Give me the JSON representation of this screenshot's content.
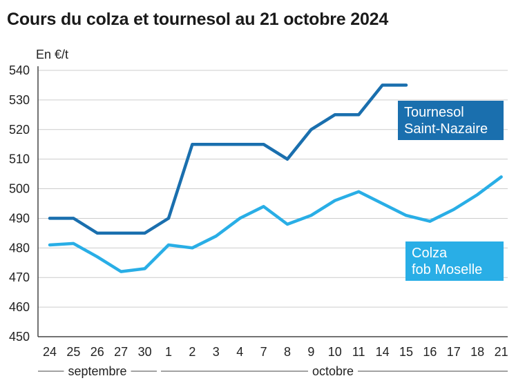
{
  "title": "Cours du colza et tournesol au 21 octobre 2024",
  "unit_label": "En €/t",
  "colors": {
    "tournesol": "#1a6fae",
    "colza": "#29aee6",
    "grid": "#cccccc",
    "axis": "#444444"
  },
  "months": [
    {
      "label": "septembre",
      "from": 0,
      "to": 4
    },
    {
      "label": "octobre",
      "from": 5,
      "to": 19
    }
  ],
  "chart_data": {
    "type": "line",
    "title": "Cours du colza et tournesol au 21 octobre 2024",
    "ylabel": "En €/t",
    "xlabel": "",
    "ylim": [
      450,
      540
    ],
    "yticks": [
      450,
      460,
      470,
      480,
      490,
      500,
      510,
      520,
      530,
      540
    ],
    "grid": "horizontal",
    "categories": [
      "24",
      "25",
      "26",
      "27",
      "30",
      "1",
      "2",
      "3",
      "4",
      "7",
      "8",
      "9",
      "10",
      "11",
      "14",
      "15",
      "16",
      "17",
      "18",
      "21"
    ],
    "series": [
      {
        "name": "Tournesol Saint-Nazaire",
        "name_lines": [
          "Tournesol",
          "Saint-Nazaire"
        ],
        "color": "#1a6fae",
        "values": [
          490,
          490,
          485,
          485,
          485,
          490,
          515,
          515,
          515,
          515,
          510,
          520,
          525,
          525,
          535,
          535,
          null,
          null,
          null,
          null
        ]
      },
      {
        "name": "Colza fob Moselle",
        "name_lines": [
          "Colza",
          "fob Moselle"
        ],
        "color": "#29aee6",
        "values": [
          481,
          481.5,
          477,
          472,
          473,
          481,
          480,
          484,
          490,
          494,
          488,
          491,
          496,
          499,
          495,
          491,
          489,
          493,
          498,
          504
        ]
      }
    ]
  }
}
